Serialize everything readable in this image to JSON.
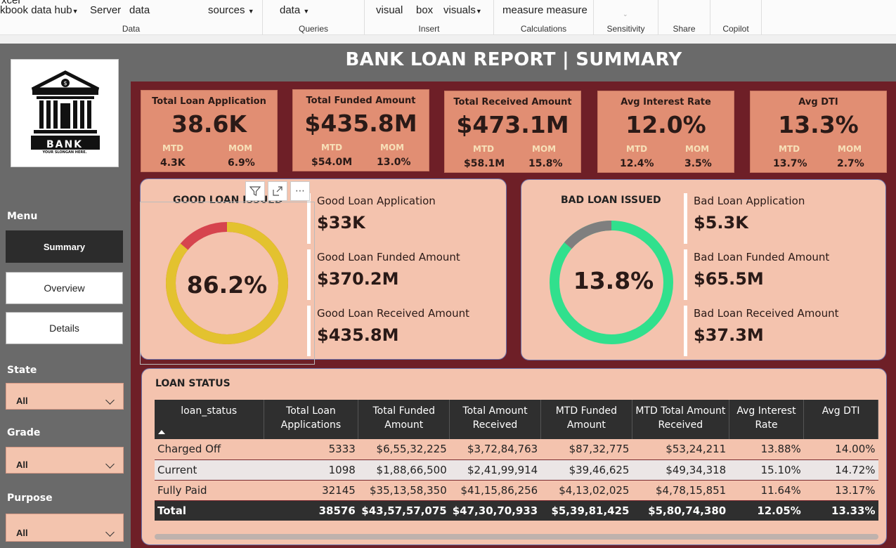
{
  "ribbon": {
    "groups": [
      {
        "label": "Data",
        "buttons": [
          "kbook data hub",
          "Server",
          "data",
          "sources"
        ]
      },
      {
        "label": "Queries",
        "buttons": [
          "data"
        ]
      },
      {
        "label": "Insert",
        "buttons": [
          "visual",
          "box",
          "visuals"
        ]
      },
      {
        "label": "Calculations",
        "buttons": [
          "measure measure"
        ]
      },
      {
        "label": "Sensitivity",
        "buttons": []
      },
      {
        "label": "Share",
        "buttons": []
      },
      {
        "label": "Copilot",
        "buttons": []
      }
    ]
  },
  "logo": {
    "text": "BANK",
    "slogan": "YOUR SLONGAN HERE."
  },
  "sidebar": {
    "menu_label": "Menu",
    "nav": [
      "Summary",
      "Overview",
      "Details"
    ],
    "slicers": [
      {
        "label": "State",
        "value": "All"
      },
      {
        "label": "Grade",
        "value": "All"
      },
      {
        "label": "Purpose",
        "value": "All"
      }
    ]
  },
  "report_title": "BANK LOAN REPORT | SUMMARY",
  "kpis": [
    {
      "title": "Total Loan Application",
      "value": "38.6K",
      "mtd_label": "MTD",
      "mtd": "4.3K",
      "mom_label": "MOM",
      "mom": "6.9%"
    },
    {
      "title": "Total Funded Amount",
      "value": "$435.8M",
      "mtd_label": "MTD",
      "mtd": "$54.0M",
      "mom_label": "MOM",
      "mom": "13.0%"
    },
    {
      "title": "Total Received Amount",
      "value": "$473.1M",
      "mtd_label": "MTD",
      "mtd": "$58.1M",
      "mom_label": "MOM",
      "mom": "15.8%"
    },
    {
      "title": "Avg  Interest Rate",
      "value": "12.0%",
      "mtd_label": "MTD",
      "mtd": "12.4%",
      "mom_label": "MOM",
      "mom": "3.5%"
    },
    {
      "title": "Avg  DTI",
      "value": "13.3%",
      "mtd_label": "MTD",
      "mtd": "13.7%",
      "mom_label": "MOM",
      "mom": "2.7%"
    }
  ],
  "good_loan": {
    "title": "GOOD LOAN ISSUED",
    "percent_label": "86.2%",
    "percent": 86.2,
    "ring_color": "#e3c22f",
    "rest_color": "#d6444e",
    "stats": [
      {
        "label": "Good Loan Application",
        "value": "$33K"
      },
      {
        "label": "Good Loan Funded Amount",
        "value": "$370.2M"
      },
      {
        "label": "Good Loan Received Amount",
        "value": "$435.8M"
      }
    ]
  },
  "bad_loan": {
    "title": "BAD LOAN ISSUED",
    "percent_label": "13.8%",
    "percent": 13.8,
    "ring_color": "#7f7f7f",
    "rest_color": "#31e08d",
    "stats": [
      {
        "label": "Bad Loan Application",
        "value": "$5.3K"
      },
      {
        "label": "Bad Loan Funded Amount",
        "value": "$65.5M"
      },
      {
        "label": "Bad Loan Received Amount",
        "value": "$37.3M"
      }
    ]
  },
  "loan_status": {
    "title": "LOAN STATUS",
    "columns": [
      "loan_status",
      "Total Loan Applications",
      "Total Funded Amount",
      "Total Amount Received",
      "MTD Funded Amount",
      "MTD Total Amount Received",
      "Avg Interest Rate",
      "Avg DTI"
    ],
    "rows": [
      [
        "Charged Off",
        "5333",
        "$6,55,32,225",
        "$3,72,84,763",
        "$87,32,775",
        "$53,24,211",
        "13.88%",
        "14.00%"
      ],
      [
        "Current",
        "1098",
        "$1,88,66,500",
        "$2,41,99,914",
        "$39,46,625",
        "$49,34,318",
        "15.10%",
        "14.72%"
      ],
      [
        "Fully Paid",
        "32145",
        "$35,13,58,350",
        "$41,15,86,256",
        "$4,13,02,025",
        "$4,78,15,851",
        "11.64%",
        "13.17%"
      ]
    ],
    "total": [
      "Total",
      "38576",
      "$43,57,57,075",
      "$47,30,70,933",
      "$5,39,81,425",
      "$5,80,74,380",
      "12.05%",
      "13.33%"
    ]
  },
  "colors": {
    "maroon": "#6e1f27",
    "kpi": "#e18e73",
    "panel": "#f4c3ae",
    "dark": "#2f2f2f"
  }
}
